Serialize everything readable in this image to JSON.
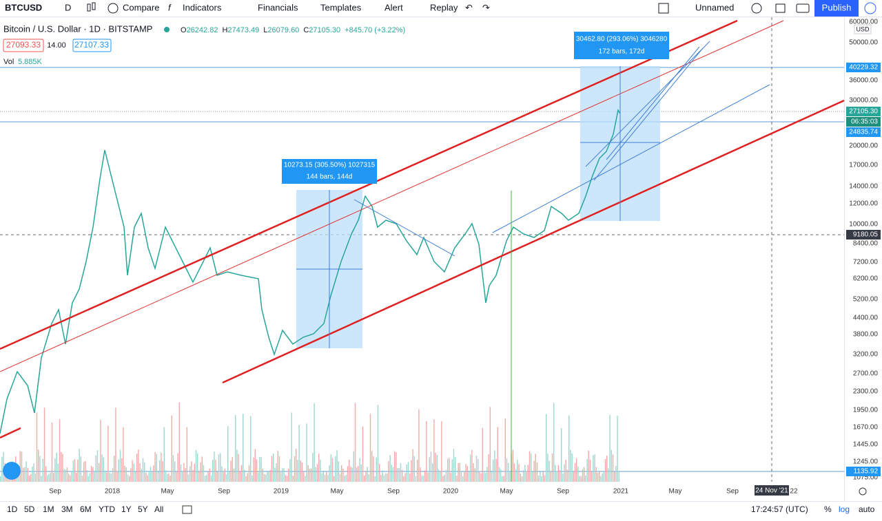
{
  "toolbar": {
    "symbol": "BTCUSD",
    "interval": "D",
    "items": [
      "Compare",
      "Indicators",
      "Financials",
      "Templates",
      "Alert",
      "Replay"
    ],
    "layout_name": "Unnamed",
    "publish": "Publish"
  },
  "legend": {
    "title": "Bitcoin / U.S. Dollar · 1D · BITSTAMP",
    "ohlc": [
      {
        "label": "O",
        "value": "26242.82"
      },
      {
        "label": "H",
        "value": "27473.49"
      },
      {
        "label": "L",
        "value": "26079.60"
      },
      {
        "label": "C",
        "value": "27105.30"
      }
    ],
    "change": "+845.70 (+3.22%)",
    "bid": "27093.33",
    "spread": "14.00",
    "ask": "27107.33",
    "volume_label": "Vol",
    "volume": "5.885K"
  },
  "annotations": [
    {
      "line1": "10273.15 (305.50%) 1027315",
      "line2": "144 bars, 144d"
    },
    {
      "line1": "30462.80 (293.06%) 3046280",
      "line2": "172 bars, 172d"
    }
  ],
  "price_axis": {
    "currency": "USD",
    "labels": [
      "60000.00",
      "50000.00",
      "36000.00",
      "30000.00",
      "20000.00",
      "17000.00",
      "14000.00",
      "12000.00",
      "10000.00",
      "8400.00",
      "7200.00",
      "6200.00",
      "5200.00",
      "4400.00",
      "3800.00",
      "3200.00",
      "2700.00",
      "2300.00",
      "1950.00",
      "1670.00",
      "1445.00",
      "1245.00",
      "1075.00"
    ],
    "tags": [
      "40229.32",
      "27105.30",
      "06:35:03",
      "24835.74",
      "9180.05",
      "1135.92"
    ]
  },
  "time_axis": {
    "labels": [
      "Sep",
      "2018",
      "May",
      "Sep",
      "2019",
      "May",
      "Sep",
      "2020",
      "May",
      "Sep",
      "2021",
      "May",
      "Sep",
      "22"
    ],
    "cursor": "24 Nov '21"
  },
  "bottom_bar": {
    "ranges": [
      "1D",
      "5D",
      "1M",
      "3M",
      "6M",
      "YTD",
      "1Y",
      "5Y",
      "All"
    ],
    "clock": "17:24:57 (UTC)",
    "percent": "%",
    "log": "log",
    "auto": "auto"
  }
}
